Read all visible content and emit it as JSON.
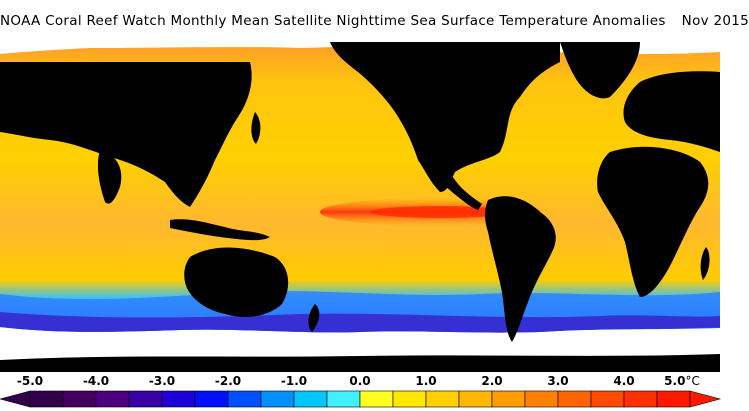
{
  "title": {
    "text": "NOAA Coral Reef Watch Monthly Mean Satellite Nighttime Sea Surface Temperature Anomalies",
    "date": "Nov 2015"
  },
  "map": {
    "description_colors": {
      "land": "#000000",
      "ice": "#ffffff"
    }
  },
  "colorbar": {
    "labels": [
      "-5.0",
      "-4.0",
      "-3.0",
      "-2.0",
      "-1.0",
      "0.0",
      "1.0",
      "2.0",
      "3.0",
      "4.0",
      "5.0"
    ],
    "unit": "°C",
    "min": -5.0,
    "max": 5.0,
    "colors": [
      "#32004a",
      "#44005e",
      "#4c0080",
      "#3a00a8",
      "#2000d8",
      "#0010ff",
      "#0050ff",
      "#0090ff",
      "#00c8ff",
      "#40f0ff",
      "#ffff20",
      "#ffe800",
      "#ffd000",
      "#ffb800",
      "#ff9c00",
      "#ff8000",
      "#ff6400",
      "#ff4a00",
      "#ff3000",
      "#ff1800"
    ]
  }
}
